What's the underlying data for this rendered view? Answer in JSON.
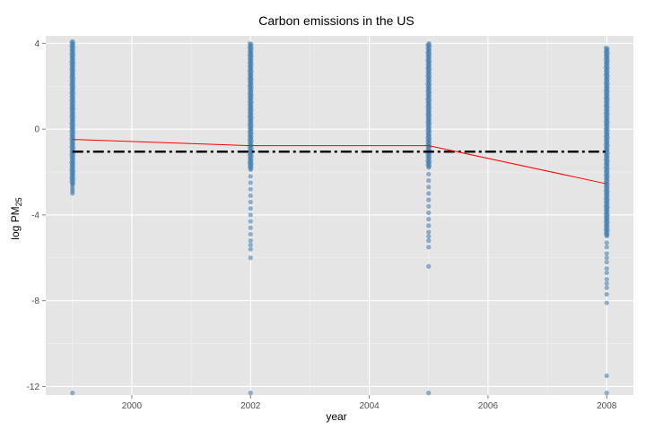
{
  "chart_data": {
    "type": "scatter",
    "title": "Carbon emissions in the US",
    "xlabel": "year",
    "ylabel_main": "log PM",
    "ylabel_sub": "25",
    "xlim": [
      1998.55,
      2008.45
    ],
    "ylim": [
      -12.4,
      4.35
    ],
    "x_ticks": [
      2000,
      2002,
      2004,
      2006,
      2008
    ],
    "y_ticks": [
      4,
      0,
      -4,
      -8,
      -12
    ],
    "x_tick_labels": [
      "2000",
      "2002",
      "2004",
      "2006",
      "2008"
    ],
    "y_tick_labels": [
      "4",
      "0",
      "-4",
      "-8",
      "-12"
    ],
    "grid": true,
    "background_color": "#e5e5e5",
    "point_color": "#4682b4",
    "point_series": [
      {
        "x": 1999,
        "dense_range": [
          -2.6,
          4.1
        ],
        "outliers": [
          -2.7,
          -2.8,
          -2.9,
          -3.0,
          -12.3
        ]
      },
      {
        "x": 2002,
        "dense_range": [
          -1.9,
          4.0
        ],
        "outliers": [
          -2.2,
          -2.5,
          -2.8,
          -3.1,
          -3.4,
          -3.7,
          -4.0,
          -4.3,
          -4.6,
          -4.9,
          -5.2,
          -5.4,
          -5.6,
          -6.0,
          -12.3
        ]
      },
      {
        "x": 2005,
        "dense_range": [
          -1.8,
          4.0
        ],
        "outliers": [
          -2.1,
          -2.4,
          -2.7,
          -3.0,
          -3.3,
          -3.6,
          -3.9,
          -4.2,
          -4.5,
          -4.8,
          -5.0,
          -5.2,
          -5.5,
          -6.4,
          -12.3
        ]
      },
      {
        "x": 2008,
        "dense_range": [
          -5.0,
          3.8
        ],
        "outliers": [
          -5.3,
          -5.5,
          -5.8,
          -6.0,
          -6.2,
          -6.5,
          -6.7,
          -7.0,
          -7.2,
          -7.4,
          -7.7,
          -8.1,
          -11.5,
          -12.3
        ]
      }
    ],
    "mean_line": {
      "color": "#ff0000",
      "points": [
        {
          "x": 1999,
          "y": -0.48
        },
        {
          "x": 2002,
          "y": -0.77
        },
        {
          "x": 2005,
          "y": -0.77
        },
        {
          "x": 2008,
          "y": -2.55
        }
      ]
    },
    "reference_line": {
      "color": "#000000",
      "style": "dot-dash",
      "y": -1.05,
      "x_range": [
        1999,
        2008
      ]
    }
  }
}
